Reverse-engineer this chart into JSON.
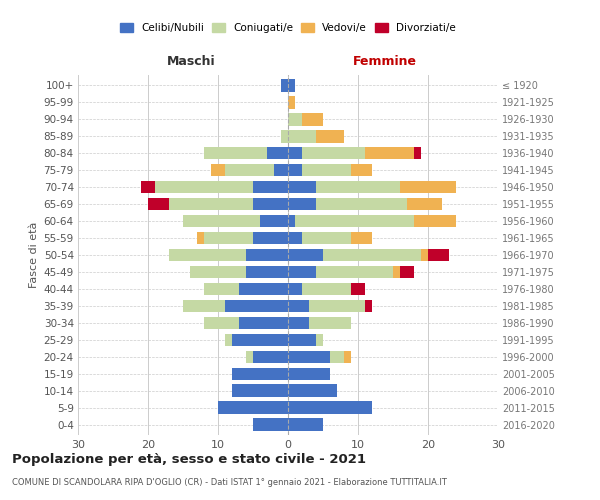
{
  "age_groups": [
    "0-4",
    "5-9",
    "10-14",
    "15-19",
    "20-24",
    "25-29",
    "30-34",
    "35-39",
    "40-44",
    "45-49",
    "50-54",
    "55-59",
    "60-64",
    "65-69",
    "70-74",
    "75-79",
    "80-84",
    "85-89",
    "90-94",
    "95-99",
    "100+"
  ],
  "birth_years": [
    "2016-2020",
    "2011-2015",
    "2006-2010",
    "2001-2005",
    "1996-2000",
    "1991-1995",
    "1986-1990",
    "1981-1985",
    "1976-1980",
    "1971-1975",
    "1966-1970",
    "1961-1965",
    "1956-1960",
    "1951-1955",
    "1946-1950",
    "1941-1945",
    "1936-1940",
    "1931-1935",
    "1926-1930",
    "1921-1925",
    "≤ 1920"
  ],
  "male": {
    "celibi": [
      5,
      10,
      8,
      8,
      5,
      8,
      7,
      9,
      7,
      6,
      6,
      5,
      4,
      5,
      5,
      2,
      3,
      0,
      0,
      0,
      1
    ],
    "coniugati": [
      0,
      0,
      0,
      0,
      1,
      1,
      5,
      6,
      5,
      8,
      11,
      7,
      11,
      12,
      14,
      7,
      9,
      1,
      0,
      0,
      0
    ],
    "vedovi": [
      0,
      0,
      0,
      0,
      0,
      0,
      0,
      0,
      0,
      0,
      0,
      1,
      0,
      0,
      0,
      2,
      0,
      0,
      0,
      0,
      0
    ],
    "divorziati": [
      0,
      0,
      0,
      0,
      0,
      0,
      0,
      0,
      0,
      0,
      0,
      0,
      0,
      3,
      2,
      0,
      0,
      0,
      0,
      0,
      0
    ]
  },
  "female": {
    "nubili": [
      5,
      12,
      7,
      6,
      6,
      4,
      3,
      3,
      2,
      4,
      5,
      2,
      1,
      4,
      4,
      2,
      2,
      0,
      0,
      0,
      1
    ],
    "coniugate": [
      0,
      0,
      0,
      0,
      2,
      1,
      6,
      8,
      7,
      11,
      14,
      7,
      17,
      13,
      12,
      7,
      9,
      4,
      2,
      0,
      0
    ],
    "vedove": [
      0,
      0,
      0,
      0,
      1,
      0,
      0,
      0,
      0,
      1,
      1,
      3,
      6,
      5,
      8,
      3,
      7,
      4,
      3,
      1,
      0
    ],
    "divorziate": [
      0,
      0,
      0,
      0,
      0,
      0,
      0,
      1,
      2,
      2,
      3,
      0,
      0,
      0,
      0,
      0,
      1,
      0,
      0,
      0,
      0
    ]
  },
  "colors": {
    "celibi": "#4472c4",
    "coniugati": "#c5d9a4",
    "vedovi": "#f0b252",
    "divorziati": "#c0002a"
  },
  "title": "Popolazione per età, sesso e stato civile - 2021",
  "subtitle": "COMUNE DI SCANDOLARA RIPA D'OGLIO (CR) - Dati ISTAT 1° gennaio 2021 - Elaborazione TUTTITALIA.IT",
  "xlabel_left": "Maschi",
  "xlabel_right": "Femmine",
  "ylabel_left": "Fasce di età",
  "xlim": 30,
  "bg_color": "#ffffff",
  "grid_color": "#cccccc"
}
